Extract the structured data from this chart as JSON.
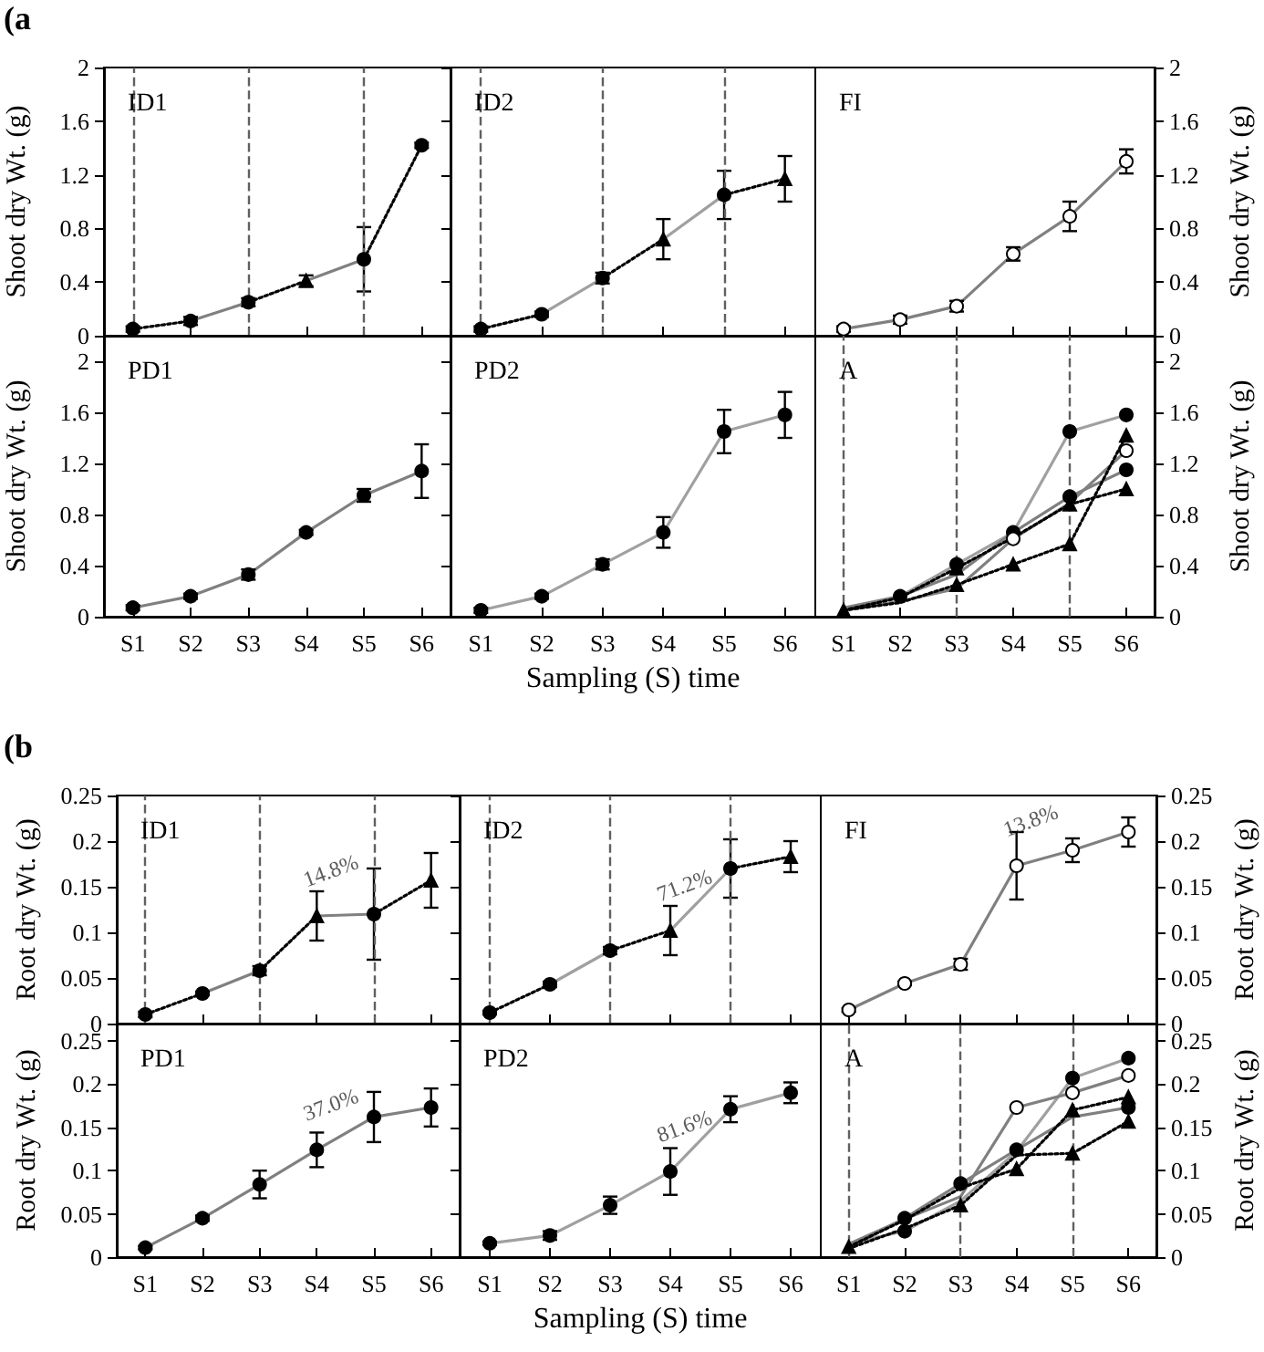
{
  "chart_data": [
    {
      "type": "line",
      "title": "ID1",
      "categories": [
        "S1",
        "S2",
        "S3",
        "S4",
        "S5",
        "S6"
      ],
      "ylabel": "Shoot dry Wt. (g)",
      "ylim": [
        0,
        2
      ],
      "yticks": [
        0,
        0.4,
        0.8,
        1.2,
        1.6,
        2
      ],
      "tick_labels": "y",
      "annotations": [
        "(a"
      ],
      "ref_lines": [
        {
          "axis": "x",
          "value": "S1",
          "color": "#606060",
          "line_style": "dashed"
        },
        {
          "axis": "x",
          "value": "S3",
          "color": "#606060",
          "line_style": "dashed"
        },
        {
          "axis": "x",
          "value": "S5",
          "color": "#606060",
          "line_style": "dashed"
        }
      ],
      "series": [
        {
          "type": "line",
          "color": "#000000",
          "marker": "none",
          "line_style": "dotted",
          "values": [
            0.05,
            0.11,
            null,
            null,
            null,
            null
          ]
        },
        {
          "type": "line",
          "color": "#808080",
          "marker": "none",
          "line_style": "solid",
          "values": [
            null,
            0.11,
            0.25,
            null,
            null,
            null
          ]
        },
        {
          "type": "line",
          "color": "#000000",
          "marker": "none",
          "line_style": "dotted",
          "values": [
            null,
            null,
            0.25,
            0.41,
            null,
            null
          ]
        },
        {
          "type": "line",
          "color": "#808080",
          "marker": "none",
          "line_style": "solid",
          "values": [
            null,
            null,
            null,
            0.41,
            0.57,
            null
          ]
        },
        {
          "type": "line",
          "color": "#000000",
          "marker": "none",
          "line_style": "dotted",
          "values": [
            null,
            null,
            null,
            null,
            0.57,
            1.42
          ]
        },
        {
          "type": "scatter",
          "color": "#000000",
          "marker": "circle",
          "values": [
            0.05,
            0.11,
            0.25,
            null,
            0.57,
            1.42
          ],
          "errors": [
            0.02,
            0.03,
            0.03,
            null,
            0.24,
            0.02
          ]
        },
        {
          "type": "scatter",
          "color": "#000000",
          "marker": "triangle",
          "values": [
            null,
            null,
            null,
            0.41,
            null,
            null
          ],
          "errors": [
            null,
            null,
            null,
            0.04,
            null,
            null
          ]
        }
      ]
    },
    {
      "type": "line",
      "title": "ID2",
      "categories": [
        "S1",
        "S2",
        "S3",
        "S4",
        "S5",
        "S6"
      ],
      "ylim": [
        0,
        2
      ],
      "yticks": [
        0,
        0.4,
        0.8,
        1.2,
        1.6,
        2
      ],
      "tick_labels": false,
      "ref_lines": [
        {
          "axis": "x",
          "value": "S1",
          "color": "#606060",
          "line_style": "dashed"
        },
        {
          "axis": "x",
          "value": "S3",
          "color": "#606060",
          "line_style": "dashed"
        },
        {
          "axis": "x",
          "value": "S5",
          "color": "#606060",
          "line_style": "dashed"
        }
      ],
      "series": [
        {
          "type": "line",
          "color": "#000000",
          "marker": "none",
          "line_style": "dotted",
          "values": [
            0.05,
            0.16,
            null,
            null,
            null,
            null
          ]
        },
        {
          "type": "line",
          "color": "#a0a0a0",
          "marker": "none",
          "line_style": "solid",
          "values": [
            null,
            0.16,
            0.43,
            null,
            null,
            null
          ]
        },
        {
          "type": "line",
          "color": "#000000",
          "marker": "none",
          "line_style": "dotted",
          "values": [
            null,
            null,
            0.43,
            0.72,
            null,
            null
          ]
        },
        {
          "type": "line",
          "color": "#a0a0a0",
          "marker": "none",
          "line_style": "solid",
          "values": [
            null,
            null,
            null,
            0.72,
            1.05,
            null
          ]
        },
        {
          "type": "line",
          "color": "#000000",
          "marker": "none",
          "line_style": "dotted",
          "values": [
            null,
            null,
            null,
            null,
            1.05,
            1.17
          ]
        },
        {
          "type": "scatter",
          "color": "#000000",
          "marker": "circle",
          "values": [
            0.05,
            0.16,
            0.43,
            null,
            1.05,
            null
          ],
          "errors": [
            0.02,
            0.02,
            0.04,
            null,
            0.18,
            null
          ]
        },
        {
          "type": "scatter",
          "color": "#000000",
          "marker": "triangle",
          "values": [
            null,
            null,
            null,
            0.72,
            null,
            1.17
          ],
          "errors": [
            null,
            null,
            null,
            0.15,
            null,
            0.17
          ]
        }
      ]
    },
    {
      "type": "line",
      "title": "FI",
      "categories": [
        "S1",
        "S2",
        "S3",
        "S4",
        "S5",
        "S6"
      ],
      "ylabel": "Shoot dry Wt. (g)",
      "ylim": [
        0,
        2
      ],
      "yticks": [
        0,
        0.4,
        0.8,
        1.2,
        1.6,
        2
      ],
      "tick_labels": "y",
      "series": [
        {
          "type": "line",
          "color": "#808080",
          "marker": "none",
          "line_style": "solid",
          "values": [
            0.05,
            0.12,
            0.22,
            0.61,
            0.89,
            1.3
          ]
        },
        {
          "type": "scatter",
          "color": "#ffffff",
          "marker": "circle",
          "values": [
            0.05,
            0.12,
            0.22,
            0.61,
            0.89,
            1.3
          ],
          "errors": [
            0.02,
            0.03,
            0.04,
            0.05,
            0.11,
            0.09
          ]
        }
      ]
    },
    {
      "type": "line",
      "title": "PD1",
      "categories": [
        "S1",
        "S2",
        "S3",
        "S4",
        "S5",
        "S6"
      ],
      "ylabel": "Shoot dry Wt. (g)",
      "ylim": [
        0,
        2.2
      ],
      "yticks": [
        0,
        0.4,
        0.8,
        1.2,
        1.6,
        2
      ],
      "series": [
        {
          "type": "line",
          "color": "#808080",
          "marker": "none",
          "line_style": "solid",
          "values": [
            0.07,
            0.16,
            0.33,
            0.66,
            0.95,
            1.14
          ]
        },
        {
          "type": "scatter",
          "color": "#000000",
          "marker": "circle",
          "values": [
            0.07,
            0.16,
            0.33,
            0.66,
            0.95,
            1.14
          ],
          "errors": [
            0.02,
            0.02,
            0.04,
            0.02,
            0.05,
            0.21
          ]
        }
      ]
    },
    {
      "type": "line",
      "title": "PD2",
      "categories": [
        "S1",
        "S2",
        "S3",
        "S4",
        "S5",
        "S6"
      ],
      "xlabel": "Sampling (S) time",
      "ylim": [
        0,
        2.2
      ],
      "yticks": [
        0,
        0.4,
        0.8,
        1.2,
        1.6,
        2
      ],
      "tick_labels": "x",
      "series": [
        {
          "type": "line",
          "color": "#a0a0a0",
          "marker": "none",
          "line_style": "solid",
          "values": [
            0.05,
            0.16,
            0.41,
            0.66,
            1.45,
            1.58
          ]
        },
        {
          "type": "scatter",
          "color": "#000000",
          "marker": "circle",
          "values": [
            0.05,
            0.16,
            0.41,
            0.66,
            1.45,
            1.58
          ],
          "errors": [
            0.02,
            0.02,
            0.04,
            0.12,
            0.17,
            0.18
          ]
        }
      ]
    },
    {
      "type": "line",
      "title": "A",
      "categories": [
        "S1",
        "S2",
        "S3",
        "S4",
        "S5",
        "S6"
      ],
      "ylabel": "Shoot dry Wt. (g)",
      "ylim": [
        0,
        2.2
      ],
      "yticks": [
        0,
        0.4,
        0.8,
        1.2,
        1.6,
        2
      ],
      "ref_lines": [
        {
          "axis": "x",
          "value": "S1",
          "color": "#606060",
          "line_style": "dashed"
        },
        {
          "axis": "x",
          "value": "S3",
          "color": "#606060",
          "line_style": "dashed"
        },
        {
          "axis": "x",
          "value": "S5",
          "color": "#606060",
          "line_style": "dashed"
        }
      ],
      "series": [
        {
          "type": "line",
          "color": "#a0a0a0",
          "marker": "none",
          "line_style": "solid",
          "values": [
            0.05,
            0.16,
            0.41,
            0.66,
            1.45,
            1.58
          ]
        },
        {
          "type": "line",
          "color": "#808080",
          "marker": "none",
          "line_style": "solid",
          "values": [
            0.07,
            0.16,
            0.33,
            0.66,
            0.94,
            1.15
          ]
        },
        {
          "type": "line",
          "color": "#808080",
          "marker": "none",
          "line_style": "solid",
          "values": [
            0.05,
            0.12,
            0.22,
            0.61,
            0.89,
            1.3
          ]
        },
        {
          "type": "line",
          "color": "#000000",
          "marker": "none",
          "line_style": "dotted",
          "values": [
            0.05,
            0.11,
            0.25,
            0.41,
            0.57,
            1.42
          ]
        },
        {
          "type": "line",
          "color": "#000000",
          "marker": "none",
          "line_style": "dotted",
          "values": [
            0.05,
            0.15,
            0.38,
            0.62,
            0.88,
            1.0
          ]
        },
        {
          "type": "scatter",
          "color": "#000000",
          "marker": "circle",
          "values": [
            null,
            null,
            0.41,
            0.66,
            1.45,
            1.58
          ]
        },
        {
          "type": "scatter",
          "color": "#000000",
          "marker": "circle",
          "values": [
            null,
            0.16,
            null,
            null,
            0.94,
            1.15
          ]
        },
        {
          "type": "scatter",
          "color": "#ffffff",
          "marker": "circle",
          "values": [
            null,
            null,
            null,
            0.61,
            null,
            1.3
          ]
        },
        {
          "type": "scatter",
          "color": "#000000",
          "marker": "triangle",
          "values": [
            null,
            null,
            0.25,
            0.41,
            0.57,
            1.42
          ]
        },
        {
          "type": "scatter",
          "color": "#000000",
          "marker": "triangle",
          "values": [
            0.05,
            null,
            0.38,
            null,
            0.88,
            1.0
          ]
        }
      ]
    },
    {
      "type": "line",
      "title": "ID1",
      "categories": [
        "S1",
        "S2",
        "S3",
        "S4",
        "S5",
        "S6"
      ],
      "ylabel": "Root dry Wt. (g)",
      "ylim": [
        0,
        0.25
      ],
      "yticks": [
        0,
        0.05,
        0.1,
        0.15,
        0.2,
        0.25
      ],
      "tick_labels": "y",
      "annotations": [
        "(b",
        {
          "text": "14.8%",
          "x": "S4",
          "y": 0.118
        }
      ],
      "ref_lines": [
        {
          "axis": "x",
          "value": "S1",
          "color": "#606060",
          "line_style": "dashed"
        },
        {
          "axis": "x",
          "value": "S3",
          "color": "#606060",
          "line_style": "dashed"
        },
        {
          "axis": "x",
          "value": "S5",
          "color": "#606060",
          "line_style": "dashed"
        }
      ],
      "series": [
        {
          "type": "line",
          "color": "#000000",
          "marker": "none",
          "line_style": "dotted",
          "values": [
            0.01,
            0.033,
            null,
            null,
            null,
            null
          ]
        },
        {
          "type": "line",
          "color": "#808080",
          "marker": "none",
          "line_style": "solid",
          "values": [
            null,
            0.033,
            0.058,
            null,
            null,
            null
          ]
        },
        {
          "type": "line",
          "color": "#000000",
          "marker": "none",
          "line_style": "dotted",
          "values": [
            null,
            null,
            0.058,
            0.118,
            null,
            null
          ]
        },
        {
          "type": "line",
          "color": "#808080",
          "marker": "none",
          "line_style": "solid",
          "values": [
            null,
            null,
            null,
            0.118,
            0.12,
            null
          ]
        },
        {
          "type": "line",
          "color": "#000000",
          "marker": "none",
          "line_style": "dotted",
          "values": [
            null,
            null,
            null,
            null,
            0.12,
            0.157
          ]
        },
        {
          "type": "scatter",
          "color": "#000000",
          "marker": "circle",
          "values": [
            0.01,
            0.033,
            0.058,
            null,
            0.12,
            null
          ],
          "errors": [
            0.003,
            0.002,
            0.005,
            null,
            0.05,
            null
          ]
        },
        {
          "type": "scatter",
          "color": "#000000",
          "marker": "triangle",
          "values": [
            null,
            null,
            null,
            0.118,
            null,
            0.157
          ],
          "errors": [
            null,
            null,
            null,
            0.027,
            null,
            0.03
          ]
        }
      ]
    },
    {
      "type": "line",
      "title": "ID2",
      "categories": [
        "S1",
        "S2",
        "S3",
        "S4",
        "S5",
        "S6"
      ],
      "ylim": [
        0,
        0.25
      ],
      "yticks": [
        0,
        0.05,
        0.1,
        0.15,
        0.2,
        0.25
      ],
      "tick_labels": false,
      "annotations": [
        {
          "text": "71.2%",
          "x": "S4",
          "y": 0.102
        }
      ],
      "ref_lines": [
        {
          "axis": "x",
          "value": "S1",
          "color": "#606060",
          "line_style": "dashed"
        },
        {
          "axis": "x",
          "value": "S3",
          "color": "#606060",
          "line_style": "dashed"
        },
        {
          "axis": "x",
          "value": "S5",
          "color": "#606060",
          "line_style": "dashed"
        }
      ],
      "series": [
        {
          "type": "line",
          "color": "#000000",
          "marker": "none",
          "line_style": "dotted",
          "values": [
            0.012,
            0.043,
            null,
            null,
            null,
            null
          ]
        },
        {
          "type": "line",
          "color": "#a0a0a0",
          "marker": "none",
          "line_style": "solid",
          "values": [
            null,
            0.043,
            0.08,
            null,
            null,
            null
          ]
        },
        {
          "type": "line",
          "color": "#000000",
          "marker": "none",
          "line_style": "dotted",
          "values": [
            null,
            null,
            0.08,
            0.102,
            null,
            null
          ]
        },
        {
          "type": "line",
          "color": "#a0a0a0",
          "marker": "none",
          "line_style": "solid",
          "values": [
            null,
            null,
            null,
            0.102,
            0.17,
            null
          ]
        },
        {
          "type": "line",
          "color": "#000000",
          "marker": "none",
          "line_style": "dotted",
          "values": [
            null,
            null,
            null,
            null,
            0.17,
            0.183
          ]
        },
        {
          "type": "scatter",
          "color": "#000000",
          "marker": "circle",
          "values": [
            0.012,
            0.043,
            0.08,
            null,
            0.17,
            null
          ],
          "errors": [
            0.002,
            0.003,
            0.004,
            null,
            0.032,
            null
          ]
        },
        {
          "type": "scatter",
          "color": "#000000",
          "marker": "triangle",
          "values": [
            null,
            null,
            null,
            0.102,
            null,
            0.183
          ],
          "errors": [
            null,
            null,
            null,
            0.027,
            null,
            0.017
          ]
        }
      ]
    },
    {
      "type": "line",
      "title": "FI",
      "categories": [
        "S1",
        "S2",
        "S3",
        "S4",
        "S5",
        "S6"
      ],
      "ylabel": "Root dry Wt. (g)",
      "ylim": [
        0,
        0.25
      ],
      "yticks": [
        0,
        0.05,
        0.1,
        0.15,
        0.2,
        0.25
      ],
      "tick_labels": "y",
      "annotations": [
        {
          "text": "13.8%",
          "x": "S4",
          "y": 0.173
        }
      ],
      "series": [
        {
          "type": "line",
          "color": "#808080",
          "marker": "none",
          "line_style": "solid",
          "values": [
            0.015,
            0.044,
            0.065,
            0.173,
            0.19,
            0.21
          ]
        },
        {
          "type": "scatter",
          "color": "#ffffff",
          "marker": "circle",
          "values": [
            0.015,
            0.044,
            0.065,
            0.173,
            0.19,
            0.21
          ],
          "errors": [
            0.002,
            0.002,
            0.006,
            0.037,
            0.013,
            0.016
          ]
        }
      ]
    },
    {
      "type": "line",
      "title": "PD1",
      "categories": [
        "S1",
        "S2",
        "S3",
        "S4",
        "S5",
        "S6"
      ],
      "ylabel": "Root dry Wt. (g)",
      "ylim": [
        0,
        0.27
      ],
      "yticks": [
        0,
        0.05,
        0.1,
        0.15,
        0.2,
        0.25
      ],
      "annotations": [
        {
          "text": "37.0%",
          "x": "S4",
          "y": 0.124
        }
      ],
      "series": [
        {
          "type": "line",
          "color": "#808080",
          "marker": "none",
          "line_style": "solid",
          "values": [
            0.011,
            0.045,
            0.084,
            0.124,
            0.162,
            0.173
          ]
        },
        {
          "type": "scatter",
          "color": "#000000",
          "marker": "circle",
          "values": [
            0.011,
            0.045,
            0.084,
            0.124,
            0.162,
            0.173
          ],
          "errors": [
            0.002,
            0.003,
            0.016,
            0.02,
            0.029,
            0.022
          ]
        }
      ]
    },
    {
      "type": "line",
      "title": "PD2",
      "categories": [
        "S1",
        "S2",
        "S3",
        "S4",
        "S5",
        "S6"
      ],
      "xlabel": "Sampling (S) time",
      "ylim": [
        0,
        0.27
      ],
      "yticks": [
        0,
        0.05,
        0.1,
        0.15,
        0.2,
        0.25
      ],
      "tick_labels": "x",
      "annotations": [
        {
          "text": "81.6%",
          "x": "S4",
          "y": 0.099
        }
      ],
      "series": [
        {
          "type": "line",
          "color": "#a0a0a0",
          "marker": "none",
          "line_style": "solid",
          "values": [
            0.016,
            0.025,
            0.06,
            0.099,
            0.171,
            0.19
          ]
        },
        {
          "type": "scatter",
          "color": "#000000",
          "marker": "circle",
          "values": [
            0.016,
            0.025,
            0.06,
            0.099,
            0.171,
            0.19
          ],
          "errors": [
            0.002,
            0.005,
            0.01,
            0.027,
            0.015,
            0.012
          ]
        }
      ]
    },
    {
      "type": "line",
      "title": "A",
      "categories": [
        "S1",
        "S2",
        "S3",
        "S4",
        "S5",
        "S6"
      ],
      "ylabel": "Root dry Wt. (g)",
      "ylim": [
        0,
        0.27
      ],
      "yticks": [
        0,
        0.05,
        0.1,
        0.15,
        0.2,
        0.25
      ],
      "ref_lines": [
        {
          "axis": "x",
          "value": "S1",
          "color": "#606060",
          "line_style": "dashed"
        },
        {
          "axis": "x",
          "value": "S3",
          "color": "#606060",
          "line_style": "dashed"
        },
        {
          "axis": "x",
          "value": "S5",
          "color": "#606060",
          "line_style": "dashed"
        }
      ],
      "series": [
        {
          "type": "line",
          "color": "#a0a0a0",
          "marker": "none",
          "line_style": "solid",
          "values": [
            0.016,
            0.03,
            0.065,
            0.122,
            0.207,
            0.23
          ]
        },
        {
          "type": "line",
          "color": "#808080",
          "marker": "none",
          "line_style": "solid",
          "values": [
            0.011,
            0.045,
            0.085,
            0.124,
            0.162,
            0.173
          ]
        },
        {
          "type": "line",
          "color": "#808080",
          "marker": "none",
          "line_style": "solid",
          "values": [
            0.015,
            0.044,
            0.07,
            0.173,
            0.19,
            0.21
          ]
        },
        {
          "type": "line",
          "color": "#000000",
          "marker": "none",
          "line_style": "dotted",
          "values": [
            0.01,
            0.033,
            0.06,
            0.118,
            0.12,
            0.157
          ]
        },
        {
          "type": "line",
          "color": "#000000",
          "marker": "none",
          "line_style": "dotted",
          "values": [
            0.012,
            0.043,
            0.08,
            0.102,
            0.17,
            0.185
          ]
        },
        {
          "type": "scatter",
          "color": "#000000",
          "marker": "circle",
          "values": [
            null,
            0.03,
            null,
            null,
            0.207,
            0.23
          ]
        },
        {
          "type": "scatter",
          "color": "#000000",
          "marker": "circle",
          "values": [
            null,
            0.045,
            0.085,
            0.124,
            null,
            0.173
          ]
        },
        {
          "type": "scatter",
          "color": "#ffffff",
          "marker": "circle",
          "values": [
            null,
            null,
            null,
            0.173,
            0.19,
            0.21
          ]
        },
        {
          "type": "scatter",
          "color": "#000000",
          "marker": "triangle",
          "values": [
            null,
            null,
            0.06,
            null,
            0.12,
            0.157
          ]
        },
        {
          "type": "scatter",
          "color": "#000000",
          "marker": "triangle",
          "values": [
            0.012,
            null,
            null,
            0.102,
            0.17,
            0.185
          ]
        }
      ]
    }
  ]
}
